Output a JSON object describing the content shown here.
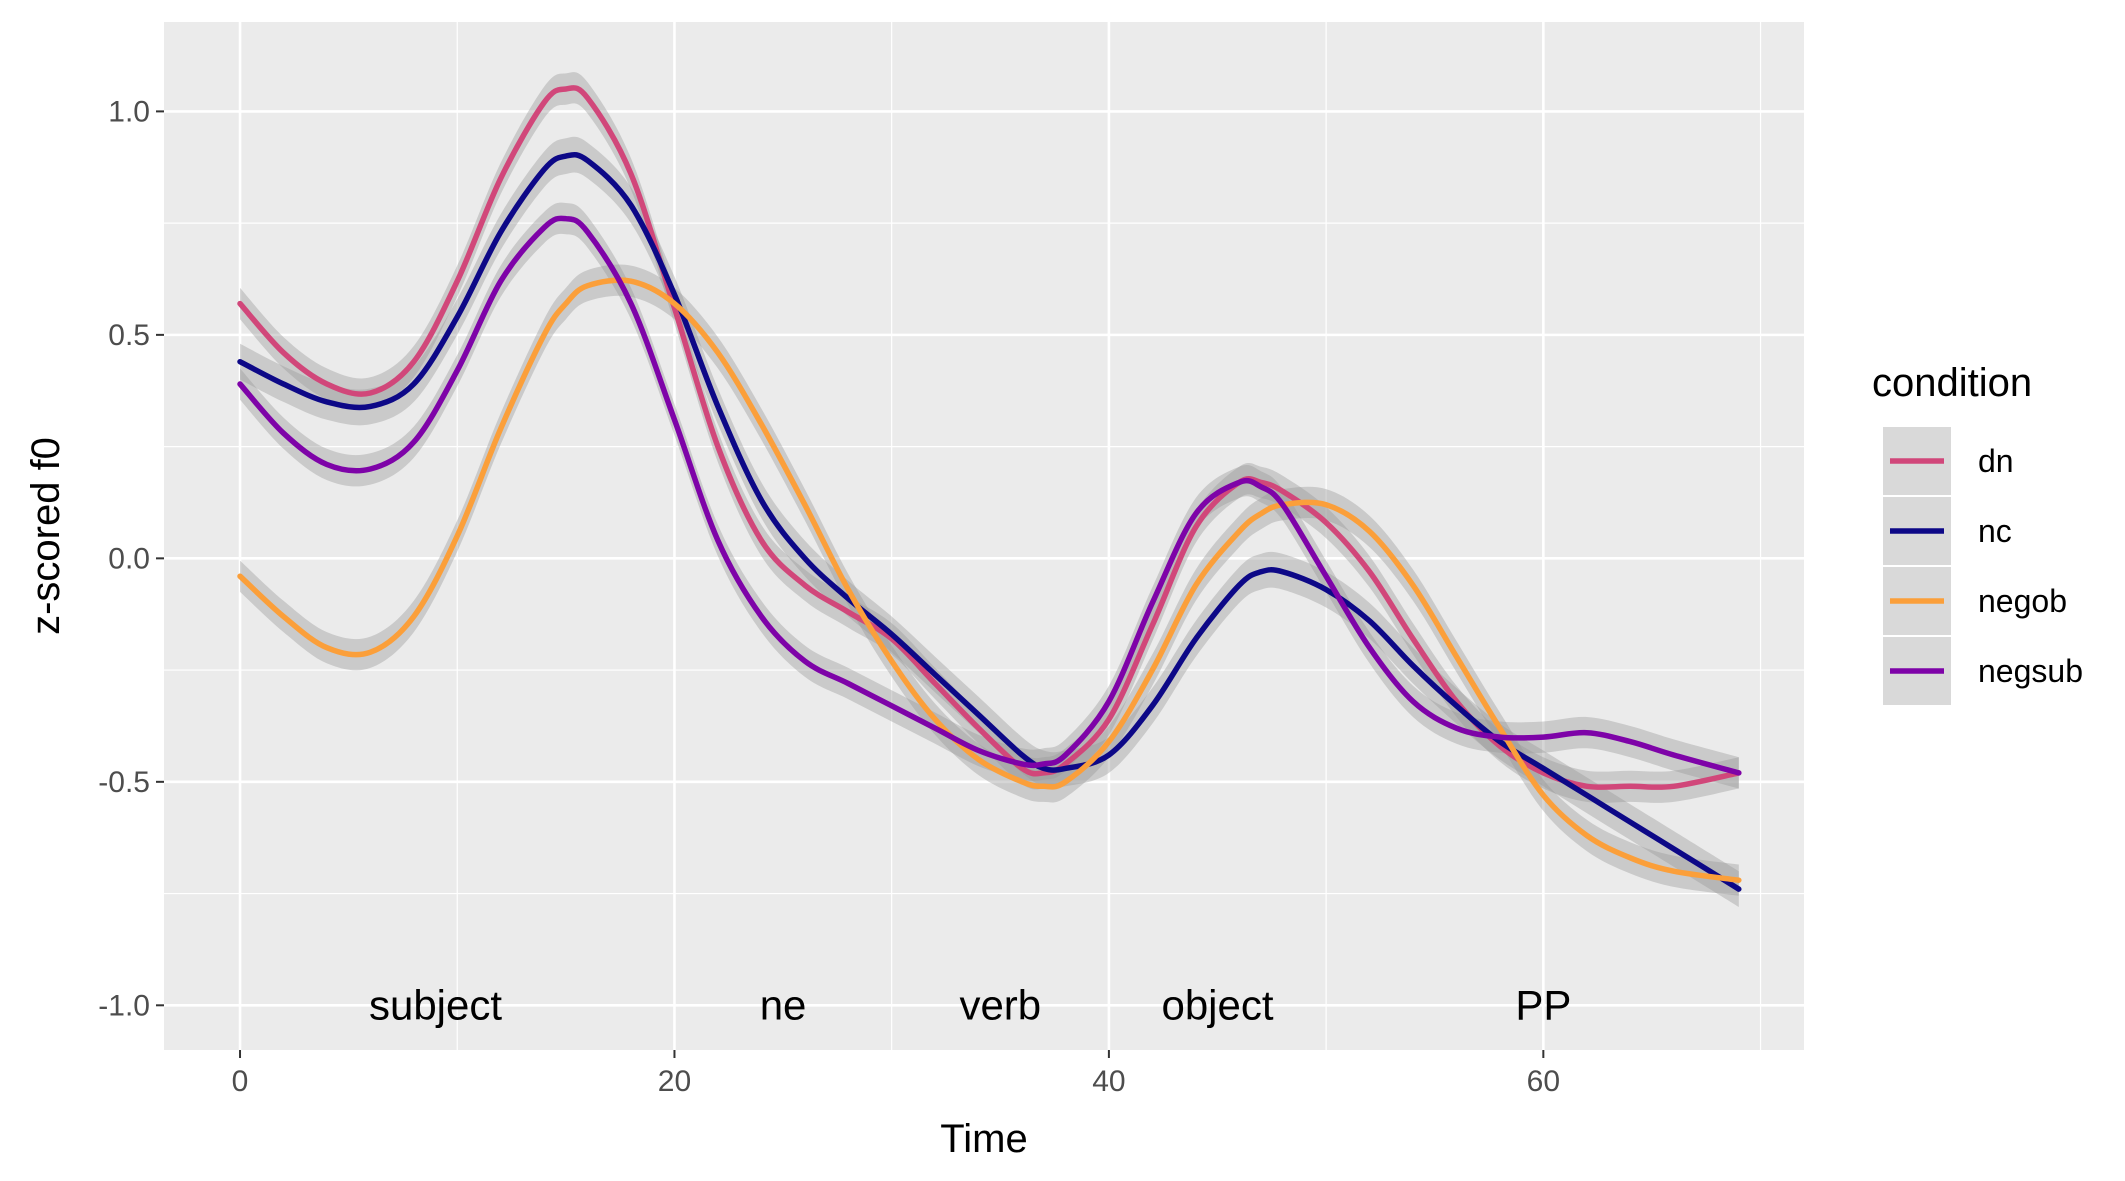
{
  "chart_data": {
    "type": "line",
    "xlabel": "Time",
    "ylabel": "z-scored f0",
    "xlim": [
      -3.5,
      72
    ],
    "ylim": [
      -1.1,
      1.2
    ],
    "xticks": [
      0,
      20,
      40,
      60
    ],
    "xtick_labels": [
      "0",
      "20",
      "40",
      "60"
    ],
    "yticks": [
      -1.0,
      -0.5,
      0.0,
      0.5,
      1.0
    ],
    "ytick_labels": [
      "-1.0",
      "-0.5",
      "0.0",
      "0.5",
      "1.0"
    ],
    "grid": true,
    "legend": {
      "title": "condition",
      "position": "right"
    },
    "annotations": [
      {
        "text": "subject",
        "x": 9,
        "y": -1.0
      },
      {
        "text": "ne",
        "x": 25,
        "y": -1.0
      },
      {
        "text": "verb",
        "x": 35,
        "y": -1.0
      },
      {
        "text": "object",
        "x": 45,
        "y": -1.0
      },
      {
        "text": "PP",
        "x": 60,
        "y": -1.0
      }
    ],
    "x": [
      0,
      2,
      4,
      6,
      8,
      10,
      12,
      14,
      15,
      16,
      18,
      20,
      22,
      24,
      26,
      28,
      30,
      32,
      34,
      36,
      37,
      38,
      40,
      42,
      44,
      46,
      47,
      48,
      50,
      52,
      54,
      56,
      58,
      60,
      62,
      64,
      66,
      69
    ],
    "series": [
      {
        "name": "dn",
        "color": "#d1477a",
        "values": [
          0.57,
          0.46,
          0.39,
          0.37,
          0.44,
          0.62,
          0.85,
          1.02,
          1.05,
          1.03,
          0.86,
          0.56,
          0.25,
          0.04,
          -0.06,
          -0.12,
          -0.18,
          -0.28,
          -0.38,
          -0.47,
          -0.48,
          -0.46,
          -0.36,
          -0.15,
          0.07,
          0.17,
          0.17,
          0.15,
          0.08,
          -0.03,
          -0.18,
          -0.32,
          -0.42,
          -0.48,
          -0.51,
          -0.51,
          -0.51,
          -0.48
        ],
        "band": 0.035
      },
      {
        "name": "nc",
        "color": "#0d0887",
        "values": [
          0.44,
          0.39,
          0.35,
          0.34,
          0.39,
          0.54,
          0.73,
          0.87,
          0.9,
          0.89,
          0.79,
          0.59,
          0.34,
          0.13,
          0.0,
          -0.09,
          -0.17,
          -0.26,
          -0.35,
          -0.44,
          -0.47,
          -0.47,
          -0.44,
          -0.33,
          -0.18,
          -0.06,
          -0.03,
          -0.03,
          -0.07,
          -0.14,
          -0.24,
          -0.33,
          -0.41,
          -0.47,
          -0.53,
          -0.59,
          -0.65,
          -0.74
        ],
        "band": 0.04
      },
      {
        "name": "negob",
        "color": "#fb9f3a",
        "values": [
          -0.04,
          -0.13,
          -0.2,
          -0.21,
          -0.13,
          0.05,
          0.29,
          0.5,
          0.57,
          0.61,
          0.62,
          0.57,
          0.46,
          0.3,
          0.12,
          -0.07,
          -0.23,
          -0.36,
          -0.45,
          -0.5,
          -0.51,
          -0.5,
          -0.41,
          -0.25,
          -0.06,
          0.06,
          0.1,
          0.12,
          0.12,
          0.06,
          -0.06,
          -0.22,
          -0.38,
          -0.53,
          -0.62,
          -0.67,
          -0.7,
          -0.72
        ],
        "band": 0.035
      },
      {
        "name": "negsub",
        "color": "#7e03a8",
        "values": [
          0.39,
          0.28,
          0.21,
          0.2,
          0.26,
          0.42,
          0.62,
          0.74,
          0.76,
          0.73,
          0.57,
          0.31,
          0.04,
          -0.13,
          -0.23,
          -0.28,
          -0.33,
          -0.38,
          -0.43,
          -0.46,
          -0.46,
          -0.44,
          -0.32,
          -0.1,
          0.1,
          0.17,
          0.16,
          0.12,
          -0.04,
          -0.2,
          -0.32,
          -0.38,
          -0.4,
          -0.4,
          -0.39,
          -0.41,
          -0.44,
          -0.48
        ],
        "band": 0.035
      }
    ]
  }
}
